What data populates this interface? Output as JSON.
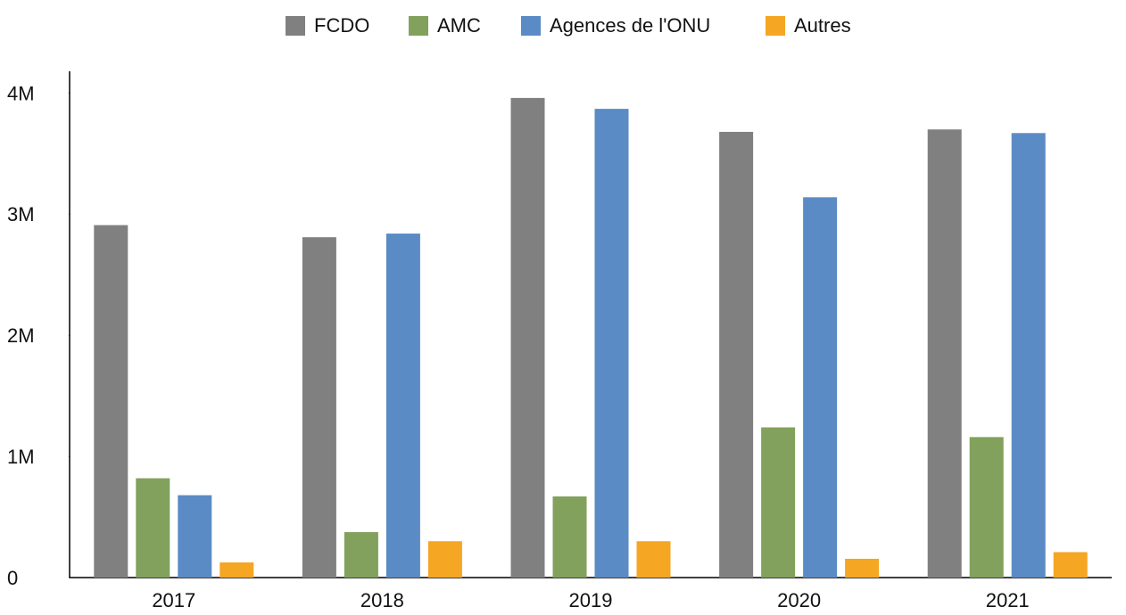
{
  "chart_data": {
    "type": "bar",
    "categories": [
      "2017",
      "2018",
      "2019",
      "2020",
      "2021"
    ],
    "series": [
      {
        "name": "FCDO",
        "color": "#808080",
        "values": [
          2910000,
          2810000,
          3960000,
          3680000,
          3700000
        ]
      },
      {
        "name": "AMC",
        "color": "#82a15c",
        "values": [
          820000,
          375000,
          670000,
          1240000,
          1160000
        ]
      },
      {
        "name": "Agences de l'ONU",
        "color": "#5b8bc5",
        "values": [
          680000,
          2840000,
          3870000,
          3140000,
          3670000
        ]
      },
      {
        "name": "Autres",
        "color": "#f5a623",
        "values": [
          125000,
          300000,
          300000,
          155000,
          210000
        ]
      }
    ],
    "ylim": [
      0,
      4180000
    ],
    "yticks": [
      0,
      {
        "value": 1000000,
        "label": "1M"
      },
      {
        "value": 2000000,
        "label": "2M"
      },
      {
        "value": 3000000,
        "label": "3M"
      },
      {
        "value": 4000000,
        "label": "4M"
      }
    ],
    "legend": "top"
  }
}
